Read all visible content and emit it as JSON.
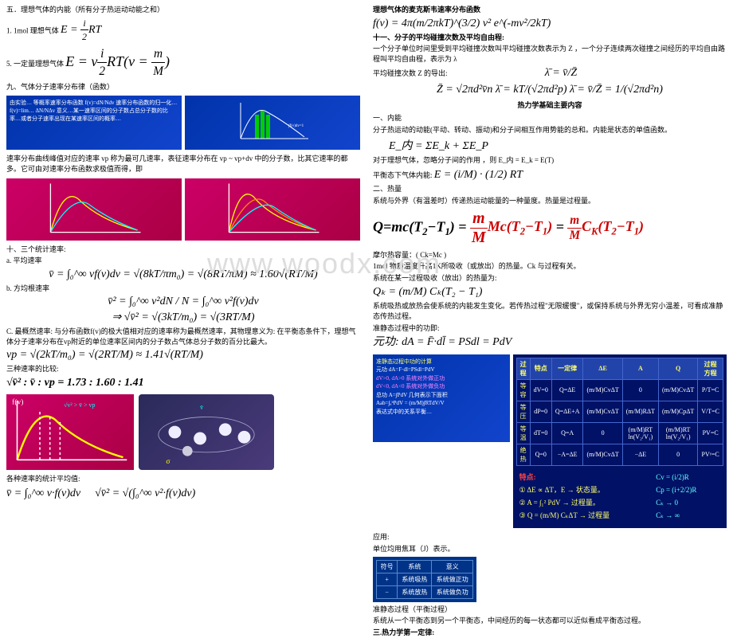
{
  "watermark": "www.woodx.com",
  "left": {
    "h1": "五．理想气体的内能（所有分子热运动动能之和）",
    "l1a": "1. 1mol 理想气体",
    "f1": "E = ν (i/2) RT",
    "l2": "5. 一定量理想气体",
    "f2": "E = ν (i/2) RT (ν = m/M)",
    "h2": "九、气体分子速率分布律（函数）",
    "blue_text": "由实验… 等概率速率分布函数 f(v)=dN/Ndv  速率分布函数的归一化… f(v)=lim… ΔN/NΔv  意义…某一速率区间的分子数占总分子数的比率…或者分子速率出现在某速率区间的概率…",
    "l3": "速率分布曲线峰值对应的速率 vp 称为最可几速率，表征速率分布在 vp ~ vp+dv 中的分子数，比其它速率的都多。它可由对速率分布函数求极值而得，即",
    "h3": "十、三个统计速率:",
    "l4": "a.        平均速率",
    "f3": "v̄ = ∫₀^∞ vf(v)dv = √(8kT/πm₀) = √(8RT/πM) ≈ 1.60√(RT/M)",
    "l5": "b.  方均根速率",
    "f4": "v̄² = ∫₀^∞ v²dN / N = ∫₀^∞ v²f(v)dv",
    "f4b": "⇒ √v̄² = √(3kT/m₀) = √(3RT/M)",
    "l6": "C.  最概然速率: 与分布函数f(v)的极大值相对应的速率称为最概然速率，其物理意义为: 在平衡态条件下，理想气体分子速率分布在vp附近的单位速率区间内的分子数占气体总分子数的百分比最大。",
    "f5": "vp = √(2kT/m₀) = √(2RT/M) ≈ 1.41√(RT/M)",
    "l7": "三种速率的比较:",
    "f6": "√v̄² : v̄ : vp = 1.73 : 1.60 : 1.41",
    "l8": "各种速率的统计平均值:",
    "f7": "v̄ = ∫₀^∞ v·f(v)dv",
    "f8": "√v̄² = √(∫₀^∞ v²·f(v)dv)"
  },
  "right": {
    "h1": "理想气体的麦克斯韦速率分布函数",
    "f1": "f(v) = 4π(m/2πkT)^(3/2) v² e^(-mv²/2kT)",
    "h2": "十一、分子的平均碰撞次数及平均自由程:",
    "l1": "一个分子单位时间里受到平均碰撞次数叫平均碰撞次数表示为 Z ，一个分子连续两次碰撞之间经历的平均自由路程叫平均自由程，表示为 λ",
    "l2": "平均碰撞次数 Z  的导出:",
    "f2a": "λ̄ = v̄/Z̄",
    "f2": "Z̄ = √2πd²v̄n      λ̄ = kT/(√2πd²p)      λ̄ = v̄/Z̄ = 1/(√2πd²n)",
    "center": "热力学基础主要内容",
    "h3": "一、内能",
    "l3": "分子热运动的动能(平动、转动、振动)和分子间相互作用势能的总和。内能是状态的单值函数。",
    "f3": "E_内 = ΣE_k + ΣE_P",
    "l4": "对于理想气体，忽略分子间的作用 ，则  E_内 = E_k = E(T)",
    "l5": "平衡态下气体内能:",
    "f4": "E = (i/M) · (1/2) RT",
    "h4": "二、热量",
    "l6": "系统与外界（有温差时）传递热运动能量的一种量度。热量是过程量。",
    "f5": "Q=mc(T₂−T₁) = (m/M) Mc(T₂−T₁) = (m/M) Cₖ(T₂−T₁)",
    "l7": "摩尔热容量：( Ck=Mc )",
    "l8": "1mol 物质温度升高1K所吸收（或放出）的热量。Ck 与过程有关。",
    "l9": "系统在某一过程吸收（放出）的热量为:",
    "f6": "Qₖ = (m/M) Cₖ(T₂ − T₁)",
    "l10": "系统吸热或放热会使系统的内能发生变化。若传热过程\"无限缓慢\"，或保持系统与外界无穷小温差，可看成准静态传热过程。",
    "l11": "准静态过程中的功即:",
    "f7": "元功:  dA = F̄·dl̄ = PSdl = PdV",
    "blue_box_lines": [
      "准静态过程中功的计算",
      "元功  dA=F·dl=PSdl=PdV",
      "dV>0, dA>0 系统对外做正功",
      "dV<0, dA<0 系统对外做负功",
      "总功 A=∫PdV 几何表示下面积",
      "Aab=∫ₐᵇPdV = (m/M)∫RTdV/V",
      "表达式中的关系平衡…"
    ],
    "l12": "应用:",
    "l13": "单位均用焦耳（J）表示。",
    "small_cols": [
      "符号",
      "系统",
      "意义"
    ],
    "small_rows": [
      [
        "+",
        "系统吸热",
        "系统做正功"
      ],
      [
        "−",
        "系统放热",
        "系统做负功"
      ]
    ],
    "l14": "准静态过程（平衡过程）",
    "l15": "系统从一个平衡态到另一个平衡态，中间经历的每一状态都可以近似看成平衡态过程。",
    "h5": "三.热力学第一定律:",
    "table_head": [
      "过程",
      "特点",
      "一定律",
      "ΔE",
      "A",
      "Q",
      "过程方程"
    ],
    "table_rows": [
      [
        "等容",
        "dV=0",
        "Q=ΔE",
        "(m/M)CvΔT",
        "0",
        "(m/M)CvΔT",
        "P/T=C"
      ],
      [
        "等压",
        "dP=0",
        "Q=ΔE+A",
        "(m/M)CvΔT",
        "(m/M)RΔT",
        "(m/M)CpΔT",
        "V/T=C"
      ],
      [
        "等温",
        "dT=0",
        "Q=A",
        "0",
        "(m/M)RT ln(V₂/V₁)",
        "(m/M)RT ln(V₂/V₁)",
        "PV=C"
      ],
      [
        "绝热",
        "Q=0",
        "−A=ΔE",
        "(m/M)CvΔT",
        "−ΔE",
        "0",
        "PVᵞ=C"
      ]
    ],
    "special": [
      "特点:",
      "① ΔE ∝ ΔT，E → 状态量。",
      "② A = ∫₁² PdV → 过程量。",
      "③ Q = (m/M) CₖΔT → 过程量"
    ],
    "special_r": [
      "Cv = (i/2)R",
      "Cp = (i+2/2)R",
      "Cₖ → 0",
      "Cₖ → ∞"
    ]
  }
}
